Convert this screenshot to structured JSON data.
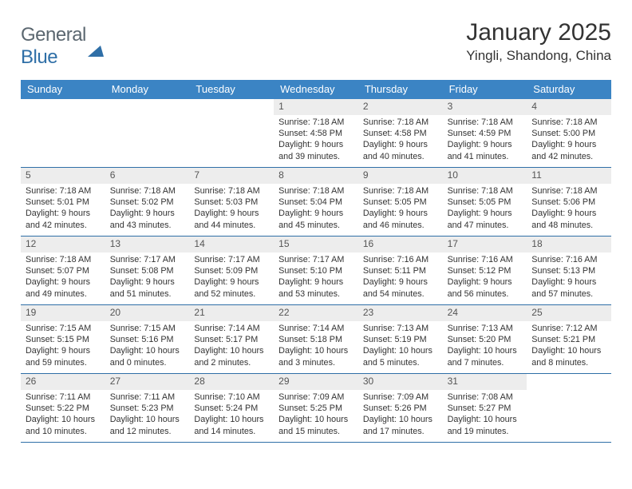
{
  "brand": {
    "name_a": "General",
    "name_b": "Blue"
  },
  "title": "January 2025",
  "location": "Yingli, Shandong, China",
  "colors": {
    "header_bg": "#3b84c4",
    "header_text": "#ffffff",
    "rule": "#2f6fa7",
    "daynum_bg": "#ededed",
    "text": "#333333",
    "logo_gray": "#5b6770",
    "logo_blue": "#2f6fa7"
  },
  "weekdays": [
    "Sunday",
    "Monday",
    "Tuesday",
    "Wednesday",
    "Thursday",
    "Friday",
    "Saturday"
  ],
  "weeks": [
    [
      null,
      null,
      null,
      {
        "day": "1",
        "sunrise": "7:18 AM",
        "sunset": "4:58 PM",
        "daylight": "9 hours and 39 minutes."
      },
      {
        "day": "2",
        "sunrise": "7:18 AM",
        "sunset": "4:58 PM",
        "daylight": "9 hours and 40 minutes."
      },
      {
        "day": "3",
        "sunrise": "7:18 AM",
        "sunset": "4:59 PM",
        "daylight": "9 hours and 41 minutes."
      },
      {
        "day": "4",
        "sunrise": "7:18 AM",
        "sunset": "5:00 PM",
        "daylight": "9 hours and 42 minutes."
      }
    ],
    [
      {
        "day": "5",
        "sunrise": "7:18 AM",
        "sunset": "5:01 PM",
        "daylight": "9 hours and 42 minutes."
      },
      {
        "day": "6",
        "sunrise": "7:18 AM",
        "sunset": "5:02 PM",
        "daylight": "9 hours and 43 minutes."
      },
      {
        "day": "7",
        "sunrise": "7:18 AM",
        "sunset": "5:03 PM",
        "daylight": "9 hours and 44 minutes."
      },
      {
        "day": "8",
        "sunrise": "7:18 AM",
        "sunset": "5:04 PM",
        "daylight": "9 hours and 45 minutes."
      },
      {
        "day": "9",
        "sunrise": "7:18 AM",
        "sunset": "5:05 PM",
        "daylight": "9 hours and 46 minutes."
      },
      {
        "day": "10",
        "sunrise": "7:18 AM",
        "sunset": "5:05 PM",
        "daylight": "9 hours and 47 minutes."
      },
      {
        "day": "11",
        "sunrise": "7:18 AM",
        "sunset": "5:06 PM",
        "daylight": "9 hours and 48 minutes."
      }
    ],
    [
      {
        "day": "12",
        "sunrise": "7:18 AM",
        "sunset": "5:07 PM",
        "daylight": "9 hours and 49 minutes."
      },
      {
        "day": "13",
        "sunrise": "7:17 AM",
        "sunset": "5:08 PM",
        "daylight": "9 hours and 51 minutes."
      },
      {
        "day": "14",
        "sunrise": "7:17 AM",
        "sunset": "5:09 PM",
        "daylight": "9 hours and 52 minutes."
      },
      {
        "day": "15",
        "sunrise": "7:17 AM",
        "sunset": "5:10 PM",
        "daylight": "9 hours and 53 minutes."
      },
      {
        "day": "16",
        "sunrise": "7:16 AM",
        "sunset": "5:11 PM",
        "daylight": "9 hours and 54 minutes."
      },
      {
        "day": "17",
        "sunrise": "7:16 AM",
        "sunset": "5:12 PM",
        "daylight": "9 hours and 56 minutes."
      },
      {
        "day": "18",
        "sunrise": "7:16 AM",
        "sunset": "5:13 PM",
        "daylight": "9 hours and 57 minutes."
      }
    ],
    [
      {
        "day": "19",
        "sunrise": "7:15 AM",
        "sunset": "5:15 PM",
        "daylight": "9 hours and 59 minutes."
      },
      {
        "day": "20",
        "sunrise": "7:15 AM",
        "sunset": "5:16 PM",
        "daylight": "10 hours and 0 minutes."
      },
      {
        "day": "21",
        "sunrise": "7:14 AM",
        "sunset": "5:17 PM",
        "daylight": "10 hours and 2 minutes."
      },
      {
        "day": "22",
        "sunrise": "7:14 AM",
        "sunset": "5:18 PM",
        "daylight": "10 hours and 3 minutes."
      },
      {
        "day": "23",
        "sunrise": "7:13 AM",
        "sunset": "5:19 PM",
        "daylight": "10 hours and 5 minutes."
      },
      {
        "day": "24",
        "sunrise": "7:13 AM",
        "sunset": "5:20 PM",
        "daylight": "10 hours and 7 minutes."
      },
      {
        "day": "25",
        "sunrise": "7:12 AM",
        "sunset": "5:21 PM",
        "daylight": "10 hours and 8 minutes."
      }
    ],
    [
      {
        "day": "26",
        "sunrise": "7:11 AM",
        "sunset": "5:22 PM",
        "daylight": "10 hours and 10 minutes."
      },
      {
        "day": "27",
        "sunrise": "7:11 AM",
        "sunset": "5:23 PM",
        "daylight": "10 hours and 12 minutes."
      },
      {
        "day": "28",
        "sunrise": "7:10 AM",
        "sunset": "5:24 PM",
        "daylight": "10 hours and 14 minutes."
      },
      {
        "day": "29",
        "sunrise": "7:09 AM",
        "sunset": "5:25 PM",
        "daylight": "10 hours and 15 minutes."
      },
      {
        "day": "30",
        "sunrise": "7:09 AM",
        "sunset": "5:26 PM",
        "daylight": "10 hours and 17 minutes."
      },
      {
        "day": "31",
        "sunrise": "7:08 AM",
        "sunset": "5:27 PM",
        "daylight": "10 hours and 19 minutes."
      },
      null
    ]
  ],
  "labels": {
    "sunrise": "Sunrise:",
    "sunset": "Sunset:",
    "daylight": "Daylight:"
  }
}
